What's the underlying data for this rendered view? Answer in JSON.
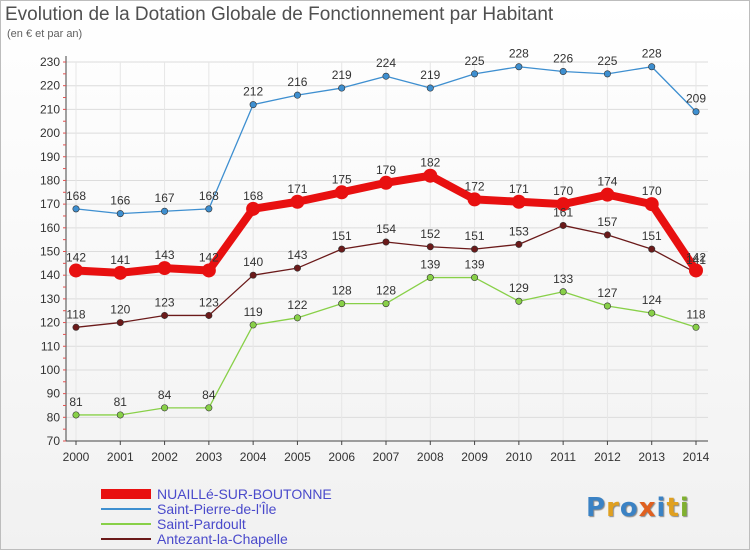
{
  "title": "Evolution de la Dotation Globale de Fonctionnement par Habitant",
  "subtitle": "(en € et par an)",
  "logo": {
    "text": "Proxiti",
    "letter_colors": [
      "#3b82c4",
      "#e0a020",
      "#3b82c4",
      "#e06020",
      "#3b82c4",
      "#e0a020",
      "#80b030"
    ]
  },
  "chart_data": {
    "type": "line",
    "title": "Evolution de la Dotation Globale de Fonctionnement par Habitant",
    "subtitle": "(en € et par an)",
    "xlabel": "",
    "ylabel": "",
    "x": [
      2000,
      2001,
      2002,
      2003,
      2004,
      2005,
      2006,
      2007,
      2008,
      2009,
      2010,
      2011,
      2012,
      2013,
      2014
    ],
    "ylim": [
      70,
      230
    ],
    "yticks": [
      70,
      80,
      90,
      100,
      110,
      120,
      130,
      140,
      150,
      160,
      170,
      180,
      190,
      200,
      210,
      220,
      230
    ],
    "grid": true,
    "legend_position": "bottom-left",
    "series": [
      {
        "name": "NUAILLé-SUR-BOUTONNE",
        "color": "#e81010",
        "emphasis": true,
        "values": [
          142,
          141,
          143,
          142,
          168,
          171,
          175,
          179,
          182,
          172,
          171,
          170,
          174,
          170,
          142
        ],
        "labels": [
          "142",
          "141",
          "143",
          "142",
          "168",
          "171",
          "175",
          "179",
          "182",
          "172",
          "171",
          "170",
          "174",
          "170",
          "142"
        ]
      },
      {
        "name": "Saint-Pierre-de-l'Île",
        "color": "#3e8fd0",
        "values": [
          168,
          166,
          167,
          168,
          212,
          216,
          219,
          224,
          219,
          225,
          228,
          226,
          225,
          228,
          209
        ],
        "labels": [
          "168",
          "166",
          "167",
          "168",
          "212",
          "216",
          "219",
          "224",
          "219",
          "225",
          "228",
          "226",
          "225",
          "228",
          "209"
        ]
      },
      {
        "name": "Saint-Pardoult",
        "color": "#88d048",
        "values": [
          81,
          81,
          84,
          84,
          119,
          122,
          128,
          128,
          139,
          139,
          129,
          133,
          127,
          124,
          118
        ],
        "labels": [
          "81",
          "81",
          "84",
          "84",
          "119",
          "122",
          "128",
          "128",
          "139",
          "139",
          "129",
          "133",
          "127",
          "124",
          "118"
        ]
      },
      {
        "name": "Antezant-la-Chapelle",
        "color": "#6b1a1a",
        "values": [
          118,
          120,
          123,
          123,
          140,
          143,
          151,
          154,
          152,
          151,
          153,
          161,
          157,
          151,
          141
        ],
        "labels": [
          "118",
          "120",
          "123",
          "123",
          "140",
          "143",
          "151",
          "154",
          "152",
          "151",
          "153",
          "161",
          "157",
          "151",
          "141"
        ]
      }
    ]
  }
}
